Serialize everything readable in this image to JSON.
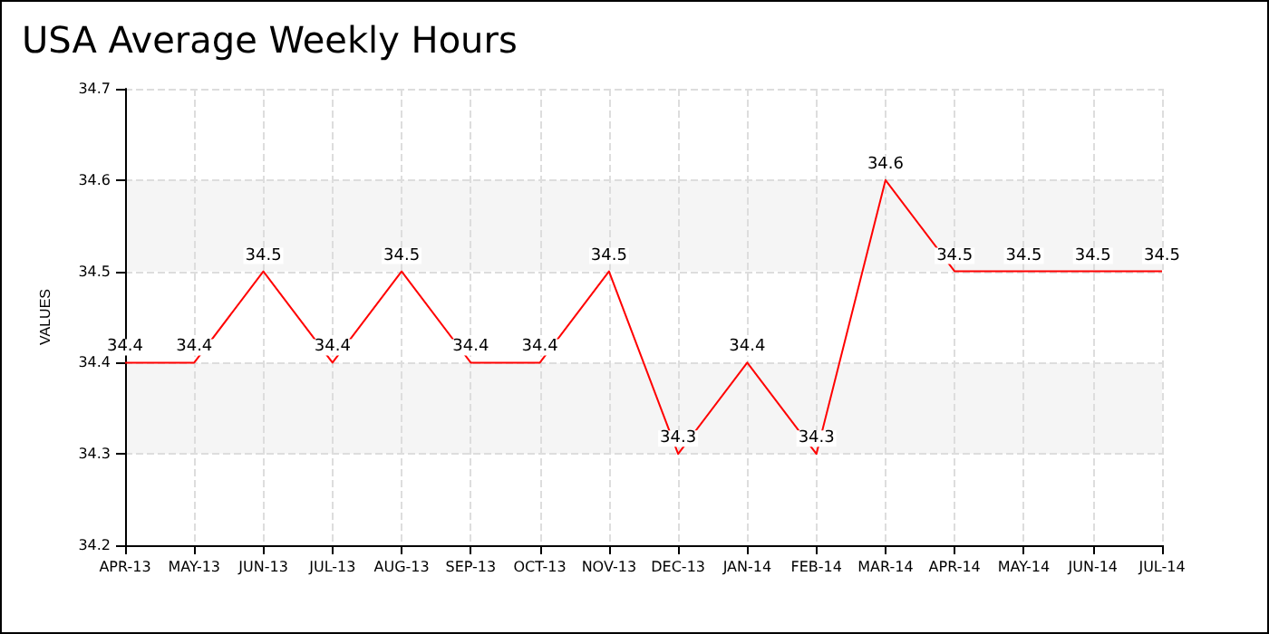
{
  "chart_data": {
    "type": "line",
    "title": "USA Average Weekly Hours",
    "ylabel": "VALUES",
    "categories": [
      "APR-13",
      "MAY-13",
      "JUN-13",
      "JUL-13",
      "AUG-13",
      "SEP-13",
      "OCT-13",
      "NOV-13",
      "DEC-13",
      "JAN-14",
      "FEB-14",
      "MAR-14",
      "APR-14",
      "MAY-14",
      "JUN-14",
      "JUL-14"
    ],
    "series": [
      {
        "color": "#ff0000",
        "values": [
          34.4,
          34.4,
          34.5,
          34.4,
          34.5,
          34.4,
          34.4,
          34.5,
          34.3,
          34.4,
          34.3,
          34.6,
          34.5,
          34.5,
          34.5,
          34.5
        ]
      }
    ],
    "ylim": [
      34.2,
      34.7
    ],
    "yticks": [
      34.2,
      34.3,
      34.4,
      34.5,
      34.6,
      34.7
    ],
    "grid": true,
    "marker": "none",
    "line_style": "solid",
    "data_labels": true
  }
}
